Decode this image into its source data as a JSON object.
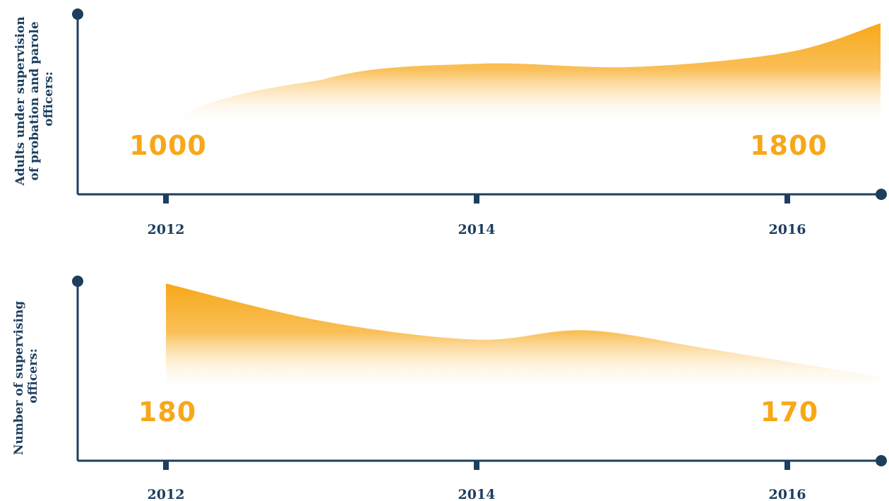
{
  "colors": {
    "axis": "#1d3e5e",
    "area": "#f7a818",
    "value_text": "#f7a818",
    "label_text": "#1d3e5e"
  },
  "chart_data": [
    {
      "type": "area",
      "title": "",
      "ylabel": "Adults under supervision of probation and parole officers:",
      "ylabel_lines": [
        "Adults under supervision",
        "of probation and parole",
        "officers:"
      ],
      "xlabel": "",
      "x_ticks": [
        "2012",
        "2014",
        "2016"
      ],
      "x": [
        2012,
        2013,
        2014,
        2015,
        2016,
        2016.6
      ],
      "values": [
        1000,
        1450,
        1550,
        1530,
        1620,
        1800
      ],
      "start_value_label": "1000",
      "end_value_label": "1800",
      "ylim": [
        700,
        1900
      ],
      "grid": false,
      "legend": "none"
    },
    {
      "type": "area",
      "title": "",
      "ylabel": "Number of supervising officers:",
      "ylabel_lines": [
        "Number of supervising",
        "officers:"
      ],
      "xlabel": "",
      "x_ticks": [
        "2012",
        "2014",
        "2016"
      ],
      "x": [
        2012,
        2013,
        2014,
        2014.7,
        2015.5,
        2016.6
      ],
      "values": [
        180,
        176,
        174,
        175,
        173,
        170
      ],
      "start_value_label": "180",
      "end_value_label": "170",
      "ylim": [
        168,
        181
      ],
      "grid": false,
      "legend": "none"
    }
  ]
}
